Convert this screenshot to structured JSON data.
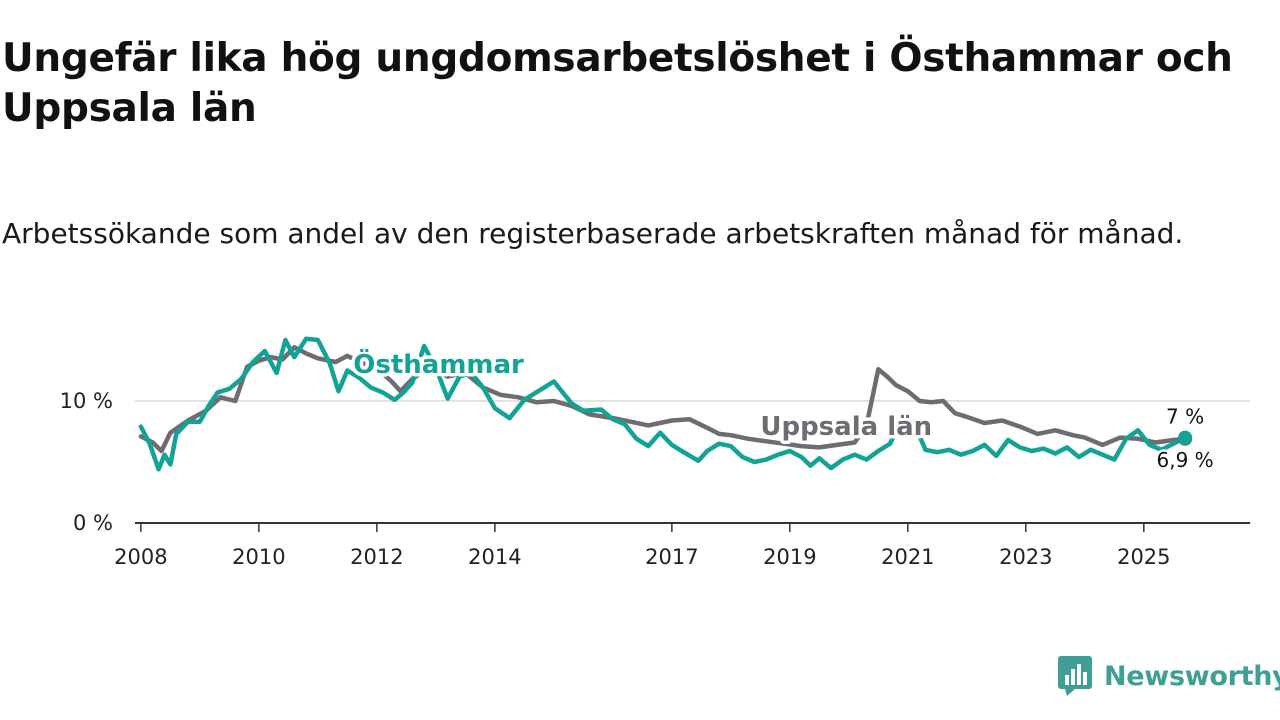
{
  "title": "Ungefär lika hög ungdomsarbetslöshet i Östhammar och Uppsala län",
  "subtitle": "Arbetssökande som andel av den registerbaserade arbetskraften månad för månad.",
  "brand": {
    "name": "Newsworthy",
    "color": "#3e9f94"
  },
  "chart_data": {
    "type": "line",
    "title": "Ungefär lika hög ungdomsarbetslöshet i Östhammar och Uppsala län",
    "xlabel": "",
    "ylabel": "",
    "xlim": [
      2007.9,
      2026.8
    ],
    "ylim": [
      0,
      15
    ],
    "x_ticks": [
      2008,
      2010,
      2012,
      2014,
      2017,
      2019,
      2021,
      2023,
      2025
    ],
    "x_tick_labels": [
      "2008",
      "2010",
      "2012",
      "2014",
      "2017",
      "2019",
      "2021",
      "2023",
      "2025"
    ],
    "y_ticks": [
      0,
      10
    ],
    "y_tick_labels": [
      "0 %",
      "10 %"
    ],
    "grid": true,
    "series": [
      {
        "name": "Uppsala län",
        "color": "#6e6c72",
        "end_label": "6,9 %",
        "label_at": [
          2018.5,
          7.2
        ],
        "x": [
          2008.0,
          2008.2,
          2008.35,
          2008.5,
          2008.8,
          2009.1,
          2009.35,
          2009.6,
          2009.8,
          2010.0,
          2010.2,
          2010.4,
          2010.6,
          2010.8,
          2011.0,
          2011.3,
          2011.5,
          2011.7,
          2012.0,
          2012.25,
          2012.4,
          2012.6,
          2012.9,
          2013.2,
          2013.5,
          2013.8,
          2014.1,
          2014.4,
          2014.7,
          2015.0,
          2015.3,
          2015.6,
          2016.0,
          2016.3,
          2016.6,
          2017.0,
          2017.3,
          2017.6,
          2017.8,
          2018.0,
          2018.3,
          2018.6,
          2018.9,
          2019.2,
          2019.5,
          2019.8,
          2020.1,
          2020.3,
          2020.5,
          2020.65,
          2020.8,
          2021.0,
          2021.2,
          2021.4,
          2021.6,
          2021.8,
          2022.0,
          2022.3,
          2022.6,
          2022.9,
          2023.2,
          2023.5,
          2023.8,
          2024.0,
          2024.3,
          2024.6,
          2024.9,
          2025.2,
          2025.5,
          2025.7
        ],
        "values": [
          7.1,
          6.6,
          5.9,
          7.4,
          8.4,
          9.2,
          10.3,
          10.0,
          12.8,
          13.3,
          13.6,
          13.4,
          14.4,
          13.9,
          13.5,
          13.2,
          13.7,
          13.2,
          12.7,
          11.6,
          10.8,
          11.8,
          12.8,
          12.0,
          12.3,
          11.1,
          10.5,
          10.3,
          9.9,
          10.0,
          9.6,
          8.9,
          8.6,
          8.3,
          8.0,
          8.4,
          8.5,
          7.8,
          7.3,
          7.2,
          6.9,
          6.7,
          6.5,
          6.3,
          6.2,
          6.4,
          6.6,
          8.0,
          12.6,
          12.0,
          11.3,
          10.8,
          10.0,
          9.9,
          10.0,
          9.0,
          8.7,
          8.2,
          8.4,
          7.9,
          7.3,
          7.6,
          7.2,
          7.0,
          6.4,
          7.0,
          6.9,
          6.6,
          6.8,
          6.9
        ]
      },
      {
        "name": "Östhammar",
        "color": "#13a396",
        "end_label": "7 %",
        "label_at": [
          2011.6,
          12.3
        ],
        "x": [
          2008.0,
          2008.15,
          2008.3,
          2008.4,
          2008.5,
          2008.6,
          2008.8,
          2009.0,
          2009.15,
          2009.3,
          2009.5,
          2009.7,
          2009.9,
          2010.1,
          2010.3,
          2010.45,
          2010.6,
          2010.8,
          2011.0,
          2011.2,
          2011.35,
          2011.5,
          2011.7,
          2011.9,
          2012.1,
          2012.3,
          2012.45,
          2012.6,
          2012.8,
          2013.0,
          2013.2,
          2013.4,
          2013.6,
          2013.8,
          2014.0,
          2014.25,
          2014.5,
          2014.8,
          2015.0,
          2015.3,
          2015.5,
          2015.8,
          2016.0,
          2016.2,
          2016.4,
          2016.6,
          2016.8,
          2017.0,
          2017.2,
          2017.45,
          2017.6,
          2017.8,
          2018.0,
          2018.2,
          2018.4,
          2018.6,
          2018.8,
          2019.0,
          2019.2,
          2019.35,
          2019.5,
          2019.7,
          2019.9,
          2020.1,
          2020.3,
          2020.5,
          2020.7,
          2020.9,
          2021.1,
          2021.3,
          2021.5,
          2021.7,
          2021.9,
          2022.1,
          2022.3,
          2022.5,
          2022.7,
          2022.9,
          2023.1,
          2023.3,
          2023.5,
          2023.7,
          2023.9,
          2024.1,
          2024.3,
          2024.5,
          2024.7,
          2024.9,
          2025.1,
          2025.3,
          2025.5,
          2025.7
        ],
        "values": [
          7.9,
          6.5,
          4.4,
          5.6,
          4.8,
          7.3,
          8.3,
          8.3,
          9.6,
          10.7,
          11.0,
          11.8,
          13.2,
          14.1,
          12.3,
          15.0,
          13.6,
          15.1,
          15.0,
          13.1,
          10.8,
          12.5,
          11.9,
          11.1,
          10.7,
          10.1,
          10.7,
          11.5,
          14.5,
          12.7,
          10.2,
          12.0,
          12.3,
          11.1,
          9.4,
          8.6,
          10.1,
          11.0,
          11.6,
          9.8,
          9.2,
          9.3,
          8.5,
          8.1,
          6.9,
          6.3,
          7.4,
          6.4,
          5.8,
          5.1,
          5.9,
          6.5,
          6.3,
          5.4,
          5.0,
          5.2,
          5.6,
          5.9,
          5.4,
          4.7,
          5.3,
          4.5,
          5.2,
          5.6,
          5.2,
          5.9,
          6.5,
          8.6,
          8.2,
          6.0,
          5.8,
          6.0,
          5.6,
          5.9,
          6.4,
          5.5,
          6.8,
          6.2,
          5.9,
          6.1,
          5.7,
          6.2,
          5.4,
          6.0,
          5.6,
          5.2,
          6.9,
          7.6,
          6.4,
          6.0,
          6.5,
          7.0
        ]
      }
    ]
  }
}
